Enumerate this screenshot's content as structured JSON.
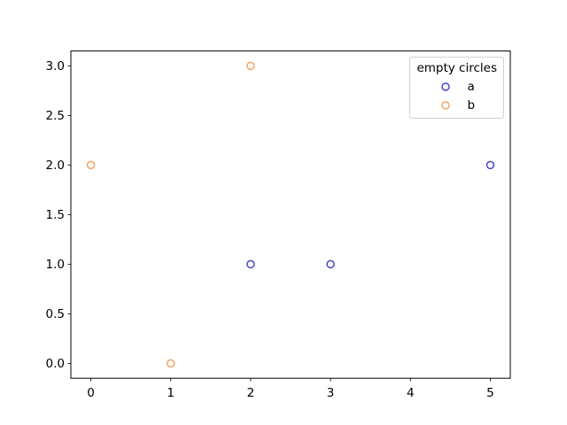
{
  "figure": {
    "background_color": "#ffffff",
    "spine_color": "#000000",
    "tick_label_color": "#000000",
    "legend_border_color": "#cfcfcf"
  },
  "chart_data": {
    "type": "scatter",
    "title": "",
    "xlabel": "",
    "ylabel": "",
    "xlim": [
      -0.25,
      5.25
    ],
    "ylim": [
      -0.15,
      3.15
    ],
    "x_ticks": [
      0,
      1,
      2,
      3,
      4,
      5
    ],
    "x_tick_labels": [
      "0",
      "1",
      "2",
      "3",
      "4",
      "5"
    ],
    "y_ticks": [
      0.0,
      0.5,
      1.0,
      1.5,
      2.0,
      2.5,
      3.0
    ],
    "y_tick_labels": [
      "0.0",
      "0.5",
      "1.0",
      "1.5",
      "2.0",
      "2.5",
      "3.0"
    ],
    "grid": false,
    "marker_style": "open-circle",
    "legend": {
      "title": "empty circles",
      "position": "upper right"
    },
    "series": [
      {
        "name": "a",
        "color": "#4646cd",
        "x": [
          2,
          3,
          5
        ],
        "y": [
          1,
          1,
          2
        ],
        "points": [
          [
            2,
            1
          ],
          [
            3,
            1
          ],
          [
            5,
            2
          ]
        ]
      },
      {
        "name": "b",
        "color": "#f2a360",
        "x": [
          0,
          1,
          2
        ],
        "y": [
          2,
          0,
          3
        ],
        "points": [
          [
            0,
            2
          ],
          [
            1,
            0
          ],
          [
            2,
            3
          ]
        ]
      }
    ]
  }
}
